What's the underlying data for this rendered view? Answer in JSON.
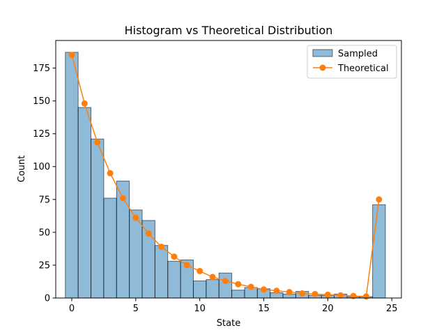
{
  "chart_data": {
    "type": "bar",
    "title": "Histogram vs Theoretical Distribution",
    "xlabel": "State",
    "ylabel": "Count",
    "xlim": [
      -1.25,
      25.75
    ],
    "ylim": [
      0,
      196
    ],
    "xticks": [
      0,
      5,
      10,
      15,
      20,
      25
    ],
    "yticks": [
      0,
      25,
      50,
      75,
      100,
      125,
      150,
      175
    ],
    "grid": false,
    "legend": "top-right",
    "series": [
      {
        "name": "Sampled",
        "type": "bar",
        "color": "#1f77b4",
        "x": [
          0,
          1,
          2,
          3,
          4,
          5,
          6,
          7,
          8,
          9,
          10,
          11,
          12,
          13,
          14,
          15,
          16,
          17,
          18,
          19,
          20,
          21,
          22,
          23,
          24
        ],
        "values": [
          187,
          145,
          121,
          76,
          89,
          67,
          59,
          40,
          28,
          29,
          13,
          14,
          19,
          6,
          8,
          7,
          4,
          3,
          5,
          2,
          2,
          3,
          1,
          1,
          71
        ]
      },
      {
        "name": "Theoretical",
        "type": "line",
        "color": "#ff7f0e",
        "x": [
          0,
          1,
          2,
          3,
          4,
          5,
          6,
          7,
          8,
          9,
          10,
          11,
          12,
          13,
          14,
          15,
          16,
          17,
          18,
          19,
          20,
          21,
          22,
          23,
          24
        ],
        "values": [
          185,
          148,
          118.5,
          95,
          76,
          61,
          49,
          39,
          31.5,
          25,
          20.5,
          16,
          13,
          10.5,
          8.5,
          6.5,
          5.5,
          4.5,
          3.5,
          3,
          2.5,
          2,
          1.5,
          1.2,
          75
        ]
      }
    ]
  }
}
